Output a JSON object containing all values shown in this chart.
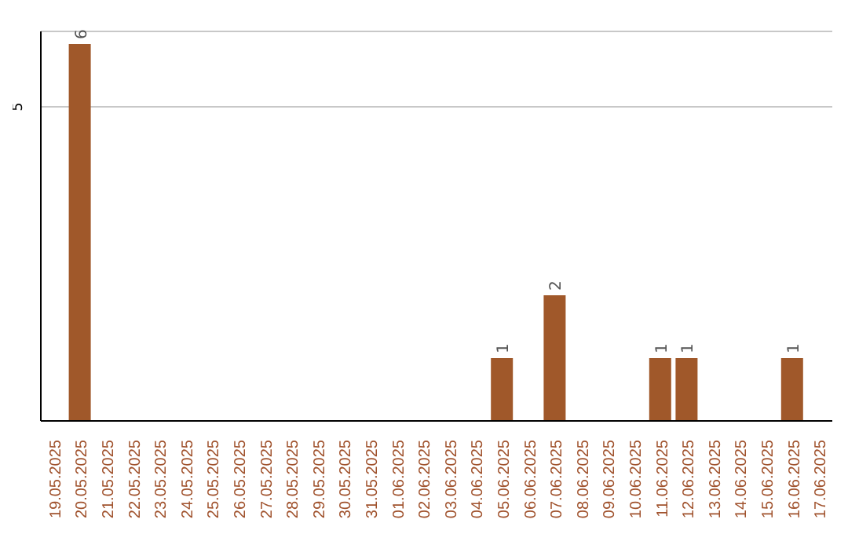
{
  "chart_data": {
    "type": "bar",
    "categories": [
      "19.05.2025",
      "20.05.2025",
      "21.05.2025",
      "22.05.2025",
      "23.05.2025",
      "24.05.2025",
      "25.05.2025",
      "26.05.2025",
      "27.05.2025",
      "28.05.2025",
      "29.05.2025",
      "30.05.2025",
      "31.05.2025",
      "01.06.2025",
      "02.06.2025",
      "03.06.2025",
      "04.06.2025",
      "05.06.2025",
      "06.06.2025",
      "07.06.2025",
      "08.06.2025",
      "09.06.2025",
      "10.06.2025",
      "11.06.2025",
      "12.06.2025",
      "13.06.2025",
      "14.06.2025",
      "15.06.2025",
      "16.06.2025",
      "17.06.2025"
    ],
    "values": [
      0,
      6,
      0,
      0,
      0,
      0,
      0,
      0,
      0,
      0,
      0,
      0,
      0,
      0,
      0,
      0,
      0,
      1,
      0,
      2,
      0,
      0,
      0,
      1,
      1,
      0,
      0,
      0,
      1,
      0
    ],
    "value_labels": [
      null,
      "6",
      null,
      null,
      null,
      null,
      null,
      null,
      null,
      null,
      null,
      null,
      null,
      null,
      null,
      null,
      null,
      "1",
      null,
      "2",
      null,
      null,
      null,
      "1",
      "1",
      null,
      null,
      null,
      "1",
      null
    ],
    "color": "#a0582a",
    "ylim": [
      0,
      6.2
    ],
    "yticks": [
      5
    ],
    "grid": "y"
  }
}
